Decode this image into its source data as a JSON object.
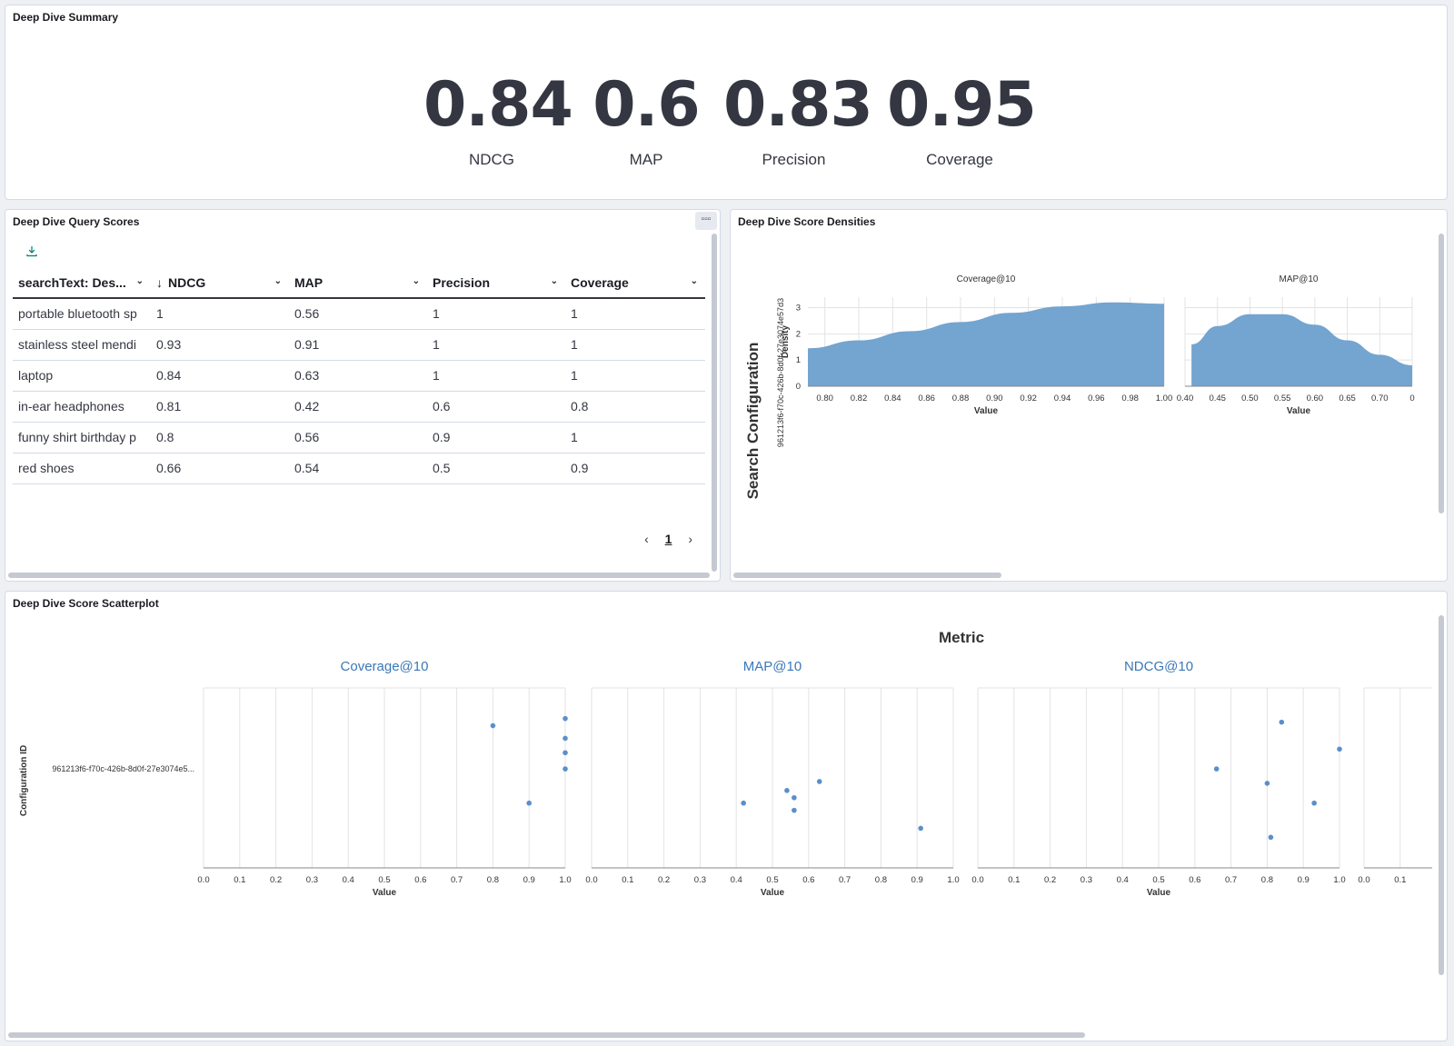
{
  "summary": {
    "title": "Deep Dive Summary",
    "metrics": [
      {
        "value": "0.84",
        "label": "NDCG"
      },
      {
        "value": "0.6",
        "label": "MAP"
      },
      {
        "value": "0.83",
        "label": "Precision"
      },
      {
        "value": "0.95",
        "label": "Coverage"
      }
    ]
  },
  "query_scores": {
    "title": "Deep Dive Query Scores",
    "menu_label": "▫▫▫",
    "columns": [
      "searchText: Des...",
      "NDCG",
      "MAP",
      "Precision",
      "Coverage"
    ],
    "sort_indicator": "↓",
    "rows": [
      [
        "portable bluetooth sp",
        "1",
        "0.56",
        "1",
        "1"
      ],
      [
        "stainless steel mendi",
        "0.93",
        "0.91",
        "1",
        "1"
      ],
      [
        "laptop",
        "0.84",
        "0.63",
        "1",
        "1"
      ],
      [
        "in-ear headphones",
        "0.81",
        "0.42",
        "0.6",
        "0.8"
      ],
      [
        "funny shirt birthday p",
        "0.8",
        "0.56",
        "0.9",
        "1"
      ],
      [
        "red shoes",
        "0.66",
        "0.54",
        "0.5",
        "0.9"
      ]
    ],
    "pager": {
      "prev": "‹",
      "page": "1",
      "next": "›"
    }
  },
  "densities": {
    "title": "Deep Dive Score Densities",
    "row_title": "Search Configuration",
    "row_id": "961213f6-f70c-426b-8d0f-27e3074e57d3"
  },
  "scatter": {
    "title": "Deep Dive Score Scatterplot"
  },
  "chart_data": [
    {
      "type": "area",
      "title": "Coverage@10",
      "xlabel": "Value",
      "ylabel": "Density",
      "xlim": [
        0.79,
        1.0
      ],
      "ylim": [
        0,
        3.4
      ],
      "xticks": [
        "0.80",
        "0.82",
        "0.84",
        "0.86",
        "0.88",
        "0.90",
        "0.92",
        "0.94",
        "0.96",
        "0.98",
        "1.00"
      ],
      "yticks": [
        "0",
        "1",
        "2",
        "3"
      ],
      "x": [
        0.79,
        0.82,
        0.85,
        0.88,
        0.91,
        0.94,
        0.97,
        1.0
      ],
      "y": [
        1.45,
        1.75,
        2.1,
        2.45,
        2.8,
        3.05,
        3.2,
        3.15
      ],
      "color": "#6d9fce"
    },
    {
      "type": "area",
      "title": "MAP@10",
      "xlabel": "Value",
      "xlim": [
        0.4,
        0.75
      ],
      "ylim": [
        0,
        3.4
      ],
      "xticks": [
        "0.40",
        "0.45",
        "0.50",
        "0.55",
        "0.60",
        "0.65",
        "0.70",
        "0"
      ],
      "x": [
        0.41,
        0.45,
        0.5,
        0.55,
        0.6,
        0.65,
        0.7,
        0.75
      ],
      "y": [
        1.6,
        2.3,
        2.75,
        2.75,
        2.35,
        1.75,
        1.2,
        0.8
      ],
      "color": "#6d9fce"
    },
    {
      "type": "scatter",
      "title": "Metric",
      "ylabel": "Configuration ID",
      "ycategory": "961213f6-f70c-426b-8d0f-27e3074e5...",
      "xlabel": "Value",
      "xticks": [
        "0.0",
        "0.1",
        "0.2",
        "0.3",
        "0.4",
        "0.5",
        "0.6",
        "0.7",
        "0.8",
        "0.9",
        "1.0"
      ],
      "xlim": [
        0,
        1
      ],
      "color": "#5b8fc9",
      "facets": [
        {
          "name": "Coverage@10",
          "points": [
            [
              0.8,
              0.79
            ],
            [
              0.9,
              0.36
            ],
            [
              1.0,
              0.83
            ],
            [
              1.0,
              0.72
            ],
            [
              1.0,
              0.64
            ],
            [
              1.0,
              0.55
            ]
          ]
        },
        {
          "name": "MAP@10",
          "points": [
            [
              0.42,
              0.36
            ],
            [
              0.54,
              0.43
            ],
            [
              0.56,
              0.39
            ],
            [
              0.56,
              0.32
            ],
            [
              0.63,
              0.48
            ],
            [
              0.91,
              0.22
            ]
          ]
        },
        {
          "name": "NDCG@10",
          "points": [
            [
              0.84,
              0.81
            ],
            [
              1.0,
              0.66
            ],
            [
              0.66,
              0.55
            ],
            [
              0.8,
              0.47
            ],
            [
              0.93,
              0.36
            ],
            [
              0.81,
              0.17
            ]
          ]
        },
        {
          "name": "",
          "points": []
        }
      ]
    }
  ]
}
